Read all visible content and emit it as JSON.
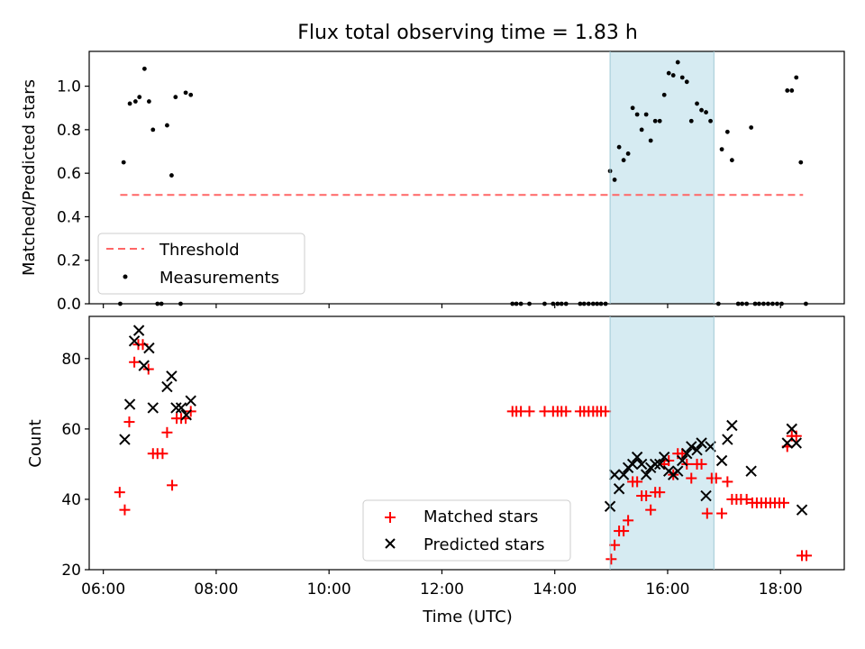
{
  "figure": {
    "title": "Flux total observing time = 1.83 h",
    "xlabel": "Time (UTC)"
  },
  "chart_data": [
    {
      "type": "scatter",
      "name": "ratio-panel",
      "ylabel": "Matched/Predicted stars",
      "xlim": [
        5.75,
        19.13
      ],
      "ylim": [
        0,
        1.16
      ],
      "x_unit": "hours UTC",
      "xticks": [
        {
          "value": 6,
          "label": "06:00"
        },
        {
          "value": 8,
          "label": "08:00"
        },
        {
          "value": 10,
          "label": "10:00"
        },
        {
          "value": 12,
          "label": "12:00"
        },
        {
          "value": 14,
          "label": "14:00"
        },
        {
          "value": 16,
          "label": "16:00"
        },
        {
          "value": 18,
          "label": "18:00"
        }
      ],
      "yticks": [
        {
          "value": 0.0,
          "label": "0.0"
        },
        {
          "value": 0.2,
          "label": "0.2"
        },
        {
          "value": 0.4,
          "label": "0.4"
        },
        {
          "value": 0.6,
          "label": "0.6"
        },
        {
          "value": 0.8,
          "label": "0.8"
        },
        {
          "value": 1.0,
          "label": "1.0"
        }
      ],
      "shaded_interval": {
        "x0": 14.98,
        "x1": 16.82,
        "color": "#add8e6"
      },
      "threshold": {
        "name": "Threshold",
        "y": 0.5,
        "x0": 6.3,
        "x1": 18.4,
        "color": "#ff6666"
      },
      "legend": {
        "placement": "lower-left",
        "entries": [
          "Threshold",
          "Measurements"
        ]
      },
      "series": [
        {
          "name": "Measurements",
          "marker": "dot",
          "color": "#000000",
          "points": [
            [
              6.3,
              0.0
            ],
            [
              6.36,
              0.65
            ],
            [
              6.47,
              0.92
            ],
            [
              6.57,
              0.93
            ],
            [
              6.64,
              0.95
            ],
            [
              6.73,
              1.08
            ],
            [
              6.81,
              0.93
            ],
            [
              6.88,
              0.8
            ],
            [
              6.96,
              0.0
            ],
            [
              7.03,
              0.0
            ],
            [
              7.13,
              0.82
            ],
            [
              7.21,
              0.59
            ],
            [
              7.28,
              0.95
            ],
            [
              7.37,
              0.0
            ],
            [
              7.46,
              0.97
            ],
            [
              7.55,
              0.96
            ],
            [
              13.25,
              0.0
            ],
            [
              13.32,
              0.0
            ],
            [
              13.4,
              0.0
            ],
            [
              13.55,
              0.0
            ],
            [
              13.82,
              0.0
            ],
            [
              13.97,
              0.0
            ],
            [
              14.05,
              0.0
            ],
            [
              14.12,
              0.0
            ],
            [
              14.2,
              0.0
            ],
            [
              14.45,
              0.0
            ],
            [
              14.52,
              0.0
            ],
            [
              14.6,
              0.0
            ],
            [
              14.68,
              0.0
            ],
            [
              14.75,
              0.0
            ],
            [
              14.82,
              0.0
            ],
            [
              14.9,
              0.0
            ],
            [
              14.98,
              0.61
            ],
            [
              15.06,
              0.57
            ],
            [
              15.14,
              0.72
            ],
            [
              15.22,
              0.66
            ],
            [
              15.3,
              0.69
            ],
            [
              15.38,
              0.9
            ],
            [
              15.46,
              0.87
            ],
            [
              15.54,
              0.8
            ],
            [
              15.62,
              0.87
            ],
            [
              15.7,
              0.75
            ],
            [
              15.78,
              0.84
            ],
            [
              15.86,
              0.84
            ],
            [
              15.94,
              0.96
            ],
            [
              16.02,
              1.06
            ],
            [
              16.1,
              1.05
            ],
            [
              16.18,
              1.11
            ],
            [
              16.26,
              1.04
            ],
            [
              16.34,
              1.02
            ],
            [
              16.42,
              0.84
            ],
            [
              16.52,
              0.92
            ],
            [
              16.6,
              0.89
            ],
            [
              16.68,
              0.88
            ],
            [
              16.76,
              0.84
            ],
            [
              16.9,
              0.0
            ],
            [
              16.96,
              0.71
            ],
            [
              17.06,
              0.79
            ],
            [
              17.14,
              0.66
            ],
            [
              17.25,
              0.0
            ],
            [
              17.32,
              0.0
            ],
            [
              17.4,
              0.0
            ],
            [
              17.48,
              0.81
            ],
            [
              17.55,
              0.0
            ],
            [
              17.62,
              0.0
            ],
            [
              17.7,
              0.0
            ],
            [
              17.78,
              0.0
            ],
            [
              17.86,
              0.0
            ],
            [
              17.94,
              0.0
            ],
            [
              18.02,
              0.0
            ],
            [
              18.12,
              0.98
            ],
            [
              18.2,
              0.98
            ],
            [
              18.28,
              1.04
            ],
            [
              18.36,
              0.65
            ],
            [
              18.45,
              0.0
            ]
          ]
        }
      ]
    },
    {
      "type": "scatter",
      "name": "count-panel",
      "ylabel": "Count",
      "xlim": [
        5.75,
        19.13
      ],
      "ylim": [
        20,
        92
      ],
      "x_unit": "hours UTC",
      "yticks": [
        {
          "value": 20,
          "label": "20"
        },
        {
          "value": 40,
          "label": "40"
        },
        {
          "value": 60,
          "label": "60"
        },
        {
          "value": 80,
          "label": "80"
        }
      ],
      "shaded_interval": {
        "x0": 14.98,
        "x1": 16.82,
        "color": "#add8e6"
      },
      "legend": {
        "placement": "lower-center",
        "entries": [
          "Matched stars",
          "Predicted stars"
        ]
      },
      "series": [
        {
          "name": "Matched stars",
          "marker": "plus",
          "color": "#ff0000",
          "points": [
            [
              6.29,
              42
            ],
            [
              6.38,
              37
            ],
            [
              6.46,
              62
            ],
            [
              6.55,
              79
            ],
            [
              6.62,
              84
            ],
            [
              6.7,
              84
            ],
            [
              6.8,
              77
            ],
            [
              6.88,
              53
            ],
            [
              6.96,
              53
            ],
            [
              7.05,
              53
            ],
            [
              7.13,
              59
            ],
            [
              7.22,
              44
            ],
            [
              7.3,
              63
            ],
            [
              7.38,
              63
            ],
            [
              7.46,
              63
            ],
            [
              7.55,
              65
            ],
            [
              13.25,
              65
            ],
            [
              13.32,
              65
            ],
            [
              13.4,
              65
            ],
            [
              13.55,
              65
            ],
            [
              13.82,
              65
            ],
            [
              13.97,
              65
            ],
            [
              14.05,
              65
            ],
            [
              14.12,
              65
            ],
            [
              14.2,
              65
            ],
            [
              14.45,
              65
            ],
            [
              14.52,
              65
            ],
            [
              14.6,
              65
            ],
            [
              14.68,
              65
            ],
            [
              14.75,
              65
            ],
            [
              14.82,
              65
            ],
            [
              14.9,
              65
            ],
            [
              15.0,
              23
            ],
            [
              15.06,
              27
            ],
            [
              15.14,
              31
            ],
            [
              15.22,
              31
            ],
            [
              15.3,
              34
            ],
            [
              15.38,
              45
            ],
            [
              15.46,
              45
            ],
            [
              15.54,
              41
            ],
            [
              15.62,
              41
            ],
            [
              15.7,
              37
            ],
            [
              15.78,
              42
            ],
            [
              15.86,
              42
            ],
            [
              15.94,
              50
            ],
            [
              16.02,
              51
            ],
            [
              16.1,
              47
            ],
            [
              16.18,
              53
            ],
            [
              16.26,
              53
            ],
            [
              16.34,
              50
            ],
            [
              16.42,
              46
            ],
            [
              16.52,
              50
            ],
            [
              16.6,
              50
            ],
            [
              16.7,
              36
            ],
            [
              16.78,
              46
            ],
            [
              16.86,
              46
            ],
            [
              16.96,
              36
            ],
            [
              17.06,
              45
            ],
            [
              17.14,
              40
            ],
            [
              17.22,
              40
            ],
            [
              17.3,
              40
            ],
            [
              17.4,
              40
            ],
            [
              17.5,
              39
            ],
            [
              17.58,
              39
            ],
            [
              17.66,
              39
            ],
            [
              17.74,
              39
            ],
            [
              17.82,
              39
            ],
            [
              17.9,
              39
            ],
            [
              17.98,
              39
            ],
            [
              18.06,
              39
            ],
            [
              18.12,
              55
            ],
            [
              18.2,
              58
            ],
            [
              18.28,
              58
            ],
            [
              18.38,
              24
            ],
            [
              18.46,
              24
            ]
          ]
        },
        {
          "name": "Predicted stars",
          "marker": "x",
          "color": "#000000",
          "points": [
            [
              6.38,
              57
            ],
            [
              6.47,
              67
            ],
            [
              6.55,
              85
            ],
            [
              6.63,
              88
            ],
            [
              6.72,
              78
            ],
            [
              6.81,
              83
            ],
            [
              6.88,
              66
            ],
            [
              7.13,
              72
            ],
            [
              7.21,
              75
            ],
            [
              7.29,
              66
            ],
            [
              7.38,
              66
            ],
            [
              7.47,
              64
            ],
            [
              7.55,
              68
            ],
            [
              14.98,
              38
            ],
            [
              15.06,
              47
            ],
            [
              15.14,
              43
            ],
            [
              15.22,
              47
            ],
            [
              15.3,
              49
            ],
            [
              15.38,
              50
            ],
            [
              15.46,
              52
            ],
            [
              15.54,
              50
            ],
            [
              15.62,
              47
            ],
            [
              15.7,
              49
            ],
            [
              15.78,
              50
            ],
            [
              15.86,
              50
            ],
            [
              15.94,
              52
            ],
            [
              16.02,
              48
            ],
            [
              16.1,
              47
            ],
            [
              16.18,
              48
            ],
            [
              16.26,
              51
            ],
            [
              16.34,
              53
            ],
            [
              16.42,
              55
            ],
            [
              16.52,
              54
            ],
            [
              16.6,
              56
            ],
            [
              16.68,
              41
            ],
            [
              16.76,
              55
            ],
            [
              16.96,
              51
            ],
            [
              17.06,
              57
            ],
            [
              17.14,
              61
            ],
            [
              17.48,
              48
            ],
            [
              18.12,
              56
            ],
            [
              18.2,
              60
            ],
            [
              18.28,
              56
            ],
            [
              18.38,
              37
            ]
          ]
        }
      ]
    }
  ]
}
